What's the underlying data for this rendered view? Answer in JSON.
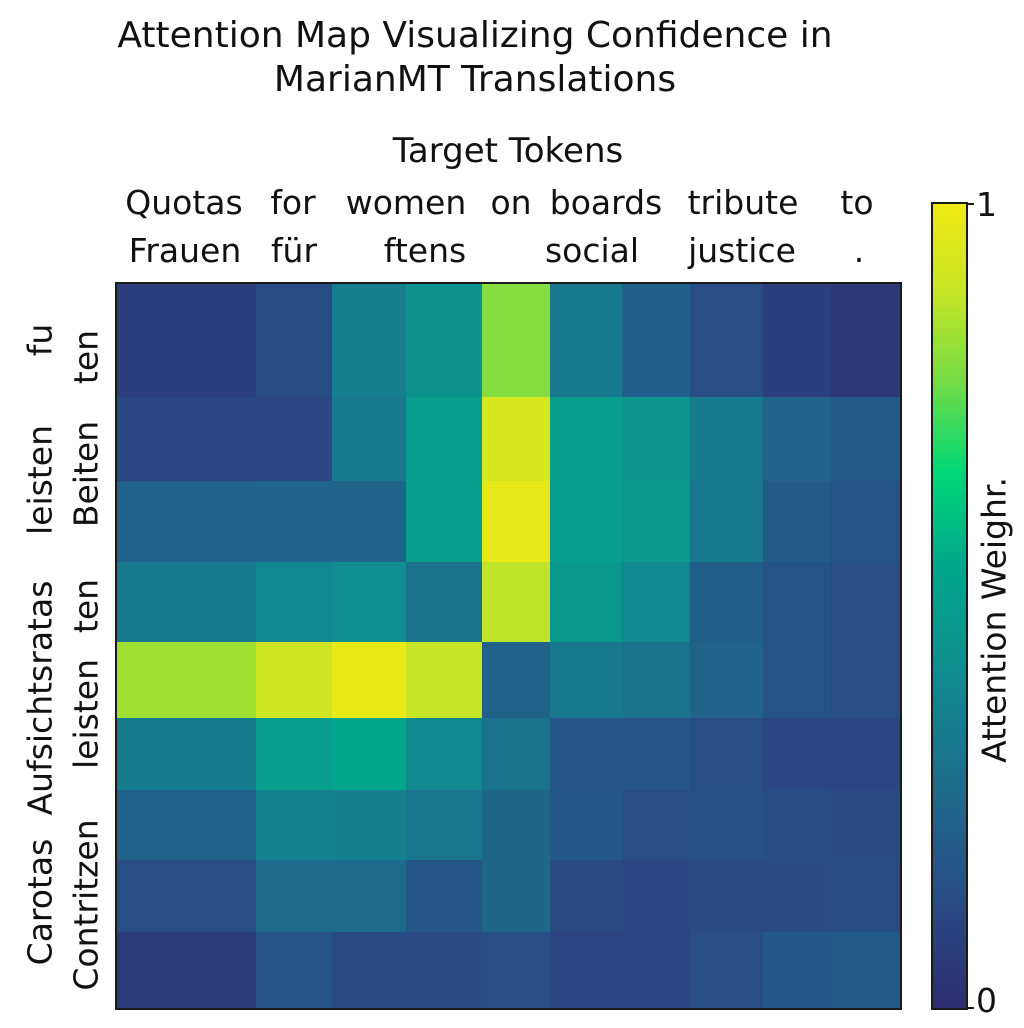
{
  "chart_data": {
    "type": "heatmap",
    "title_lines": [
      "Attention Map Visualizing Confidence in",
      "MarianMT Translations"
    ],
    "xlabel": "Target Tokens",
    "x_labels_row1": [
      "Quotas",
      "for",
      "women",
      "on",
      "boards",
      "tribute",
      "to"
    ],
    "x_labels_row2": [
      "Frauen",
      "für",
      "ftens",
      "social",
      "justice",
      "."
    ],
    "y_labels_left": [
      "fu",
      "leisten",
      "Aufsichtsratas",
      "Carotas"
    ],
    "y_labels_right": [
      "ten",
      "Beiten",
      "ten",
      "leisten",
      "Contritzen"
    ],
    "colorbar_label": "Attention Weighr.",
    "colorbar_ticks": [
      "1",
      "0"
    ],
    "vrange": [
      0,
      1
    ],
    "colormap": [
      "#2c2d6f",
      "#2b4582",
      "#21608a",
      "#18798e",
      "#0d928f",
      "#00a98a",
      "#00d877",
      "#73dc45",
      "#c6e526",
      "#f0ea12"
    ],
    "values": [
      [
        0.08,
        0.08,
        0.14,
        0.36,
        0.44,
        0.8,
        0.33,
        0.22,
        0.15,
        0.08,
        0.05
      ],
      [
        0.12,
        0.12,
        0.12,
        0.33,
        0.5,
        0.93,
        0.5,
        0.46,
        0.34,
        0.24,
        0.2
      ],
      [
        0.23,
        0.23,
        0.24,
        0.24,
        0.5,
        0.97,
        0.5,
        0.47,
        0.33,
        0.2,
        0.17
      ],
      [
        0.33,
        0.33,
        0.4,
        0.42,
        0.3,
        0.88,
        0.47,
        0.4,
        0.21,
        0.17,
        0.15
      ],
      [
        0.84,
        0.84,
        0.91,
        0.98,
        0.89,
        0.23,
        0.33,
        0.3,
        0.23,
        0.17,
        0.15
      ],
      [
        0.34,
        0.34,
        0.5,
        0.54,
        0.4,
        0.3,
        0.18,
        0.18,
        0.15,
        0.12,
        0.11
      ],
      [
        0.23,
        0.23,
        0.37,
        0.36,
        0.32,
        0.25,
        0.19,
        0.15,
        0.16,
        0.14,
        0.13
      ],
      [
        0.15,
        0.15,
        0.27,
        0.27,
        0.18,
        0.25,
        0.13,
        0.12,
        0.13,
        0.13,
        0.14
      ],
      [
        0.06,
        0.06,
        0.17,
        0.13,
        0.13,
        0.15,
        0.11,
        0.12,
        0.15,
        0.19,
        0.2
      ]
    ]
  }
}
